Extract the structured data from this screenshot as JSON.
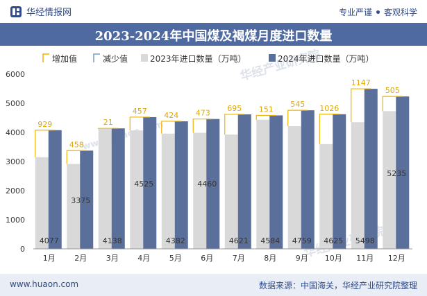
{
  "header": {
    "brand": "华经情报网",
    "tags": [
      "专业严谨",
      "客观科学"
    ]
  },
  "title": "2023-2024年中国煤及褐煤月度进口数量",
  "footer": {
    "url": "www.huaon.com",
    "source": "数据来源：中国海关，华经产业研究院整理"
  },
  "watermark": "华经产业研究院",
  "watermark_url": "www.huaon.com",
  "colors": {
    "series_2023": "#d9d9d9",
    "series_2024": "#5b6f9b",
    "increase": "#f0b400",
    "decrease": "#7a9cc6",
    "header_bar": "#4f6aa0",
    "brand_text": "#2f4b88"
  },
  "chart_data": {
    "type": "bar",
    "categories": [
      "1月",
      "2月",
      "3月",
      "4月",
      "5月",
      "6月",
      "7月",
      "8月",
      "9月",
      "10月",
      "11月",
      "12月"
    ],
    "series": [
      {
        "name": "2023年进口数量（万吨）",
        "values": [
          3148,
          2917,
          4117,
          4068,
          3958,
          3987,
          3926,
          4433,
          4214,
          3599,
          4351,
          4730
        ]
      },
      {
        "name": "2024年进口数量（万吨）",
        "values": [
          4077,
          3375,
          4138,
          4525,
          4382,
          4460,
          4621,
          4584,
          4759,
          4625,
          5498,
          5235
        ]
      }
    ],
    "increase_values": [
      929,
      458,
      21,
      457,
      424,
      473,
      695,
      151,
      545,
      1026,
      1147,
      505
    ],
    "decrease_values": [],
    "legend": [
      "增加值",
      "减少值",
      "2023年进口数量（万吨）",
      "2024年进口数量（万吨）"
    ],
    "legend_position": "top",
    "ylim": [
      0,
      6000
    ],
    "yticks": [
      0,
      1000,
      2000,
      3000,
      4000,
      5000,
      6000
    ],
    "xlabel": "",
    "ylabel": "",
    "grid": false
  }
}
